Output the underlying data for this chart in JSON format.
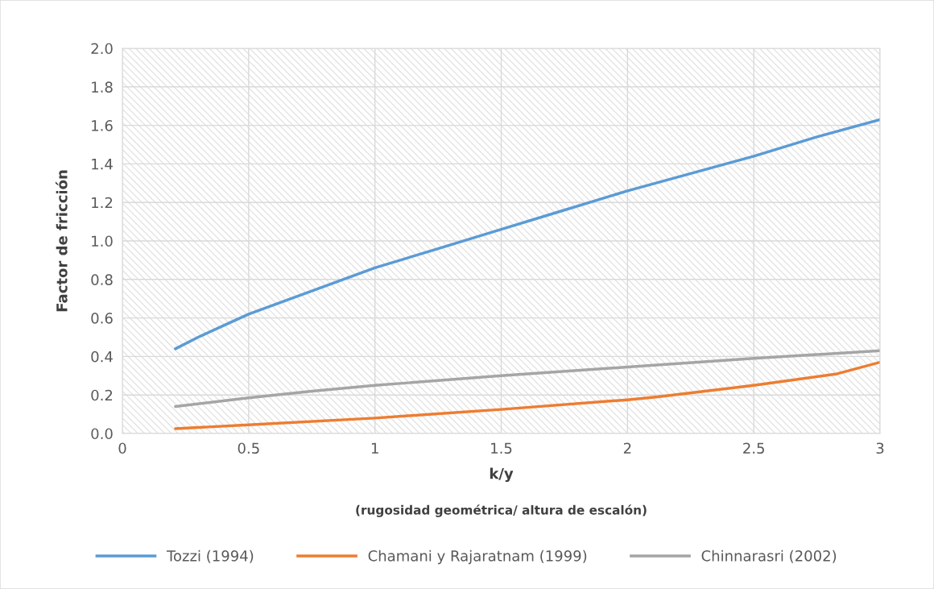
{
  "chart_data": {
    "type": "line",
    "xlabel": "k/y\n(rugosidad geométrica/ altura de escalón)",
    "ylabel": "Factor de fricción",
    "xlim": [
      0,
      3
    ],
    "xticks": [
      0,
      0.5,
      1,
      1.5,
      2,
      2.5,
      3
    ],
    "ylim": [
      0,
      2
    ],
    "yticks": [
      {
        "value": 0,
        "label": "0.0"
      },
      {
        "value": 0.2,
        "label": "0.2"
      },
      {
        "value": 0.4,
        "label": "0.4"
      },
      {
        "value": 0.6,
        "label": "0.6"
      },
      {
        "value": 0.8,
        "label": "0.8"
      },
      {
        "value": 1.0,
        "label": "1.0"
      },
      {
        "value": 1.2,
        "label": "1.2"
      },
      {
        "value": 1.4,
        "label": "1.4"
      },
      {
        "value": 1.6,
        "label": "1.6"
      },
      {
        "value": 1.8,
        "label": "1.8"
      },
      {
        "value": 2.0,
        "label": "2.0"
      }
    ],
    "grid": true,
    "legend": "bottom",
    "marker": "none",
    "line_style": "solid",
    "series": [
      {
        "name": "Tozzi (1994)",
        "color": "#5b9bd5",
        "x": [
          0.21,
          0.3,
          0.4,
          0.5,
          0.75,
          1.0,
          1.25,
          1.5,
          1.75,
          2.0,
          2.25,
          2.5,
          2.75,
          3.0
        ],
        "values": [
          0.44,
          0.5,
          0.56,
          0.62,
          0.74,
          0.86,
          0.96,
          1.06,
          1.16,
          1.26,
          1.35,
          1.44,
          1.54,
          1.63
        ]
      },
      {
        "name": "Chamani y Rajaratnam (1999)",
        "color": "#ed7d31",
        "x": [
          0.21,
          0.5,
          1.0,
          1.5,
          2.0,
          2.12,
          2.5,
          2.83,
          3.0
        ],
        "values": [
          0.025,
          0.045,
          0.08,
          0.125,
          0.175,
          0.19,
          0.25,
          0.31,
          0.37
        ]
      },
      {
        "name": "Chinnarasri (2002)",
        "color": "#a5a5a5",
        "x": [
          0.21,
          0.5,
          0.75,
          1.0,
          1.5,
          2.0,
          2.5,
          3.0
        ],
        "values": [
          0.14,
          0.185,
          0.22,
          0.25,
          0.3,
          0.345,
          0.39,
          0.43
        ]
      }
    ]
  }
}
